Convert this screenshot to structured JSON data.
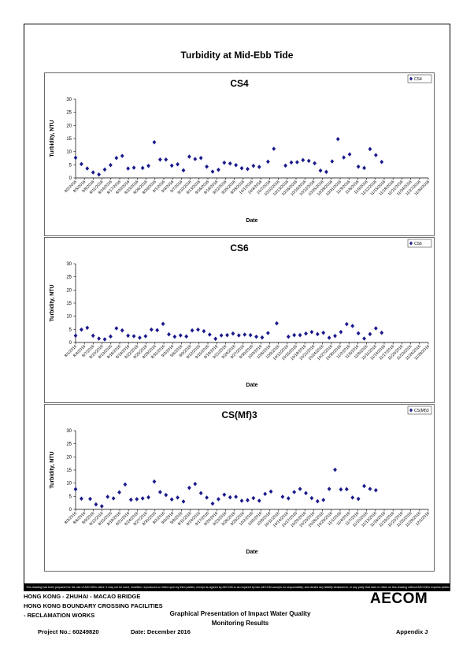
{
  "page_title": "Turbidity at Mid-Ebb Tide",
  "disclaimer": "This drawing has been prepared for the use of AECOM's client. It may not be used, modified, reproduced or relied upon by third parties, except as agreed by AECOM or as required by law. AECOM accepts no responsibility, and denies any liability whatsoever, to any party that uses or relies on this drawing without AECOM's express written consent.",
  "footer": {
    "project_line1": "HONG KONG - ZHUHAI - MACAO BRIDGE",
    "project_line2": "HONG KONG BOUNDARY CROSSING FACILITIES",
    "project_line3": "- RECLAMATION WORKS",
    "drawing_title_line1": "Graphical Presentation of Impact Water Quality",
    "drawing_title_line2": "Monitoring Results",
    "project_no": "Project No.: 60249820",
    "date": "Date: December 2016",
    "appendix": "Appendix J",
    "logo": "AECOM"
  },
  "colors": {
    "marker": "#1a1a8c"
  },
  "chart_data": [
    {
      "type": "scatter",
      "title": "CS4",
      "xlabel": "Date",
      "ylabel": "Turbidity, NTU",
      "ylim": [
        0,
        30
      ],
      "yticks": [
        0,
        5,
        10,
        15,
        20,
        25,
        30
      ],
      "xlim": [
        "2016-08-02",
        "2016-12-01"
      ],
      "grid": false,
      "legend": "top-right",
      "series": [
        {
          "name": "CS4",
          "marker": "diamond"
        }
      ],
      "xtick_labels": [
        "8/2/2016",
        "8/5/2016",
        "8/8/2016",
        "8/11/2016",
        "8/14/2016",
        "8/17/2016",
        "8/20/2016",
        "8/23/2016",
        "8/26/2016",
        "8/29/2016",
        "9/1/2016",
        "9/4/2016",
        "9/7/2016",
        "9/10/2016",
        "9/13/2016",
        "9/16/2016",
        "9/19/2016",
        "9/22/2016",
        "9/25/2016",
        "9/28/2016",
        "10/1/2016",
        "10/4/2016",
        "10/7/2016",
        "10/10/2016",
        "10/13/2016",
        "10/16/2016",
        "10/19/2016",
        "10/22/2016",
        "10/25/2016",
        "10/28/2016",
        "10/31/2016",
        "11/3/2016",
        "11/6/2016",
        "11/9/2016",
        "11/12/2016",
        "11/15/2016",
        "11/18/2016",
        "11/21/2016",
        "11/24/2016",
        "11/27/2016",
        "11/30/2016"
      ],
      "points": [
        [
          "2016-08-02",
          7.7
        ],
        [
          "2016-08-04",
          5.3
        ],
        [
          "2016-08-06",
          3.6
        ],
        [
          "2016-08-08",
          2.1
        ],
        [
          "2016-08-10",
          1.3
        ],
        [
          "2016-08-12",
          3.2
        ],
        [
          "2016-08-14",
          4.9
        ],
        [
          "2016-08-16",
          7.6
        ],
        [
          "2016-08-18",
          8.4
        ],
        [
          "2016-08-20",
          3.6
        ],
        [
          "2016-08-22",
          3.9
        ],
        [
          "2016-08-25",
          3.8
        ],
        [
          "2016-08-27",
          4.6
        ],
        [
          "2016-08-29",
          13.6
        ],
        [
          "2016-08-31",
          7.0
        ],
        [
          "2016-09-02",
          7.0
        ],
        [
          "2016-09-04",
          4.7
        ],
        [
          "2016-09-06",
          5.2
        ],
        [
          "2016-09-08",
          2.9
        ],
        [
          "2016-09-10",
          8.1
        ],
        [
          "2016-09-12",
          7.2
        ],
        [
          "2016-09-14",
          7.6
        ],
        [
          "2016-09-16",
          4.3
        ],
        [
          "2016-09-18",
          2.4
        ],
        [
          "2016-09-20",
          3.1
        ],
        [
          "2016-09-22",
          5.8
        ],
        [
          "2016-09-24",
          5.5
        ],
        [
          "2016-09-26",
          4.9
        ],
        [
          "2016-09-28",
          3.7
        ],
        [
          "2016-09-30",
          3.4
        ],
        [
          "2016-10-02",
          4.6
        ],
        [
          "2016-10-04",
          4.2
        ],
        [
          "2016-10-07",
          6.2
        ],
        [
          "2016-10-09",
          11.1
        ],
        [
          "2016-10-13",
          4.7
        ],
        [
          "2016-10-15",
          5.9
        ],
        [
          "2016-10-17",
          6.0
        ],
        [
          "2016-10-19",
          6.8
        ],
        [
          "2016-10-21",
          6.5
        ],
        [
          "2016-10-23",
          5.6
        ],
        [
          "2016-10-25",
          2.8
        ],
        [
          "2016-10-27",
          2.3
        ],
        [
          "2016-10-29",
          6.3
        ],
        [
          "2016-10-31",
          14.8
        ],
        [
          "2016-11-02",
          7.8
        ],
        [
          "2016-11-04",
          9.0
        ],
        [
          "2016-11-07",
          4.3
        ],
        [
          "2016-11-09",
          3.8
        ],
        [
          "2016-11-11",
          11.0
        ],
        [
          "2016-11-13",
          8.7
        ],
        [
          "2016-11-15",
          6.1
        ]
      ]
    },
    {
      "type": "scatter",
      "title": "CS6",
      "xlabel": "Date",
      "ylabel": "Turbidity, NTU",
      "ylim": [
        0,
        30
      ],
      "yticks": [
        0,
        5,
        10,
        15,
        20,
        25,
        30
      ],
      "xlim": [
        "2016-08-01",
        "2016-11-30"
      ],
      "grid": false,
      "legend": "top-right",
      "series": [
        {
          "name": "CS6",
          "marker": "diamond"
        }
      ],
      "xtick_labels": [
        "8/1/2016",
        "8/4/2016",
        "8/7/2016",
        "8/10/2016",
        "8/13/2016",
        "8/16/2016",
        "8/19/2016",
        "8/22/2016",
        "8/25/2016",
        "8/28/2016",
        "8/31/2016",
        "9/3/2016",
        "9/6/2016",
        "9/9/2016",
        "9/12/2016",
        "9/15/2016",
        "9/18/2016",
        "9/21/2016",
        "9/24/2016",
        "9/27/2016",
        "9/30/2016",
        "10/3/2016",
        "10/6/2016",
        "10/9/2016",
        "10/12/2016",
        "10/15/2016",
        "10/18/2016",
        "10/21/2016",
        "10/24/2016",
        "10/27/2016",
        "10/30/2016",
        "11/2/2016",
        "11/5/2016",
        "11/8/2016",
        "11/11/2016",
        "11/14/2016",
        "11/17/2016",
        "11/20/2016",
        "11/23/2016",
        "11/26/2016",
        "11/29/2016"
      ],
      "points": [
        [
          "2016-08-01",
          2.6
        ],
        [
          "2016-08-03",
          4.9
        ],
        [
          "2016-08-05",
          5.6
        ],
        [
          "2016-08-07",
          2.6
        ],
        [
          "2016-08-09",
          1.5
        ],
        [
          "2016-08-11",
          1.2
        ],
        [
          "2016-08-13",
          2.3
        ],
        [
          "2016-08-15",
          5.4
        ],
        [
          "2016-08-17",
          4.6
        ],
        [
          "2016-08-19",
          2.6
        ],
        [
          "2016-08-21",
          2.4
        ],
        [
          "2016-08-23",
          1.8
        ],
        [
          "2016-08-25",
          2.4
        ],
        [
          "2016-08-27",
          4.9
        ],
        [
          "2016-08-29",
          4.7
        ],
        [
          "2016-08-31",
          7.1
        ],
        [
          "2016-09-02",
          3.1
        ],
        [
          "2016-09-04",
          2.2
        ],
        [
          "2016-09-06",
          2.7
        ],
        [
          "2016-09-08",
          2.3
        ],
        [
          "2016-09-10",
          4.6
        ],
        [
          "2016-09-12",
          4.9
        ],
        [
          "2016-09-14",
          4.3
        ],
        [
          "2016-09-16",
          3.0
        ],
        [
          "2016-09-18",
          1.4
        ],
        [
          "2016-09-20",
          2.7
        ],
        [
          "2016-09-22",
          2.8
        ],
        [
          "2016-09-24",
          3.4
        ],
        [
          "2016-09-26",
          2.7
        ],
        [
          "2016-09-28",
          3.0
        ],
        [
          "2016-09-30",
          2.8
        ],
        [
          "2016-10-02",
          2.2
        ],
        [
          "2016-10-04",
          1.9
        ],
        [
          "2016-10-06",
          3.6
        ],
        [
          "2016-10-09",
          7.3
        ],
        [
          "2016-10-13",
          2.2
        ],
        [
          "2016-10-15",
          2.8
        ],
        [
          "2016-10-17",
          2.8
        ],
        [
          "2016-10-19",
          3.4
        ],
        [
          "2016-10-21",
          4.0
        ],
        [
          "2016-10-23",
          3.2
        ],
        [
          "2016-10-25",
          3.7
        ],
        [
          "2016-10-27",
          1.8
        ],
        [
          "2016-10-29",
          2.5
        ],
        [
          "2016-10-31",
          4.0
        ],
        [
          "2016-11-02",
          7.0
        ],
        [
          "2016-11-04",
          6.3
        ],
        [
          "2016-11-06",
          3.5
        ],
        [
          "2016-11-08",
          1.5
        ],
        [
          "2016-11-10",
          3.2
        ],
        [
          "2016-11-12",
          5.4
        ],
        [
          "2016-11-14",
          3.7
        ]
      ]
    },
    {
      "type": "scatter",
      "title": "CS(Mf)3",
      "xlabel": "Date",
      "ylabel": "Turbidity, NTU",
      "ylim": [
        0,
        30
      ],
      "yticks": [
        0,
        5,
        10,
        15,
        20,
        25,
        30
      ],
      "xlim": [
        "2016-08-03",
        "2016-12-02"
      ],
      "grid": false,
      "legend": "top-right",
      "series": [
        {
          "name": "CS(Mf)3",
          "marker": "diamond"
        }
      ],
      "xtick_labels": [
        "8/3/2016",
        "8/6/2016",
        "8/9/2016",
        "8/12/2016",
        "8/15/2016",
        "8/18/2016",
        "8/21/2016",
        "8/24/2016",
        "8/27/2016",
        "8/30/2016",
        "9/2/2016",
        "9/5/2016",
        "9/8/2016",
        "9/11/2016",
        "9/14/2016",
        "9/17/2016",
        "9/20/2016",
        "9/23/2016",
        "9/26/2016",
        "9/29/2016",
        "10/2/2016",
        "10/5/2016",
        "10/8/2016",
        "10/11/2016",
        "10/14/2016",
        "10/17/2016",
        "10/20/2016",
        "10/23/2016",
        "10/26/2016",
        "10/29/2016",
        "11/1/2016",
        "11/4/2016",
        "11/7/2016",
        "11/10/2016",
        "11/13/2016",
        "11/16/2016",
        "11/19/2016",
        "11/22/2016",
        "11/25/2016",
        "11/28/2016",
        "12/1/2016"
      ],
      "points": [
        [
          "2016-08-03",
          7.7
        ],
        [
          "2016-08-05",
          4.1
        ],
        [
          "2016-08-08",
          4.0
        ],
        [
          "2016-08-10",
          1.9
        ],
        [
          "2016-08-12",
          1.2
        ],
        [
          "2016-08-14",
          4.8
        ],
        [
          "2016-08-16",
          4.2
        ],
        [
          "2016-08-18",
          6.5
        ],
        [
          "2016-08-20",
          9.5
        ],
        [
          "2016-08-22",
          3.7
        ],
        [
          "2016-08-24",
          3.9
        ],
        [
          "2016-08-26",
          4.2
        ],
        [
          "2016-08-28",
          4.6
        ],
        [
          "2016-08-30",
          10.6
        ],
        [
          "2016-09-01",
          6.6
        ],
        [
          "2016-09-03",
          5.5
        ],
        [
          "2016-09-05",
          3.8
        ],
        [
          "2016-09-07",
          4.5
        ],
        [
          "2016-09-09",
          3.0
        ],
        [
          "2016-09-11",
          8.2
        ],
        [
          "2016-09-13",
          9.7
        ],
        [
          "2016-09-15",
          6.2
        ],
        [
          "2016-09-17",
          4.5
        ],
        [
          "2016-09-19",
          2.2
        ],
        [
          "2016-09-21",
          3.9
        ],
        [
          "2016-09-23",
          5.6
        ],
        [
          "2016-09-25",
          4.6
        ],
        [
          "2016-09-27",
          4.8
        ],
        [
          "2016-09-29",
          3.3
        ],
        [
          "2016-10-01",
          3.5
        ],
        [
          "2016-10-03",
          4.3
        ],
        [
          "2016-10-05",
          3.3
        ],
        [
          "2016-10-07",
          5.9
        ],
        [
          "2016-10-09",
          6.8
        ],
        [
          "2016-10-13",
          4.8
        ],
        [
          "2016-10-15",
          4.2
        ],
        [
          "2016-10-17",
          6.6
        ],
        [
          "2016-10-19",
          7.8
        ],
        [
          "2016-10-21",
          6.2
        ],
        [
          "2016-10-23",
          4.3
        ],
        [
          "2016-10-25",
          3.1
        ],
        [
          "2016-10-27",
          3.6
        ],
        [
          "2016-10-29",
          7.8
        ],
        [
          "2016-10-31",
          15.1
        ],
        [
          "2016-11-02",
          7.6
        ],
        [
          "2016-11-04",
          7.7
        ],
        [
          "2016-11-06",
          4.5
        ],
        [
          "2016-11-08",
          4.0
        ],
        [
          "2016-11-10",
          8.9
        ],
        [
          "2016-11-12",
          7.8
        ],
        [
          "2016-11-14",
          7.3
        ]
      ]
    }
  ]
}
